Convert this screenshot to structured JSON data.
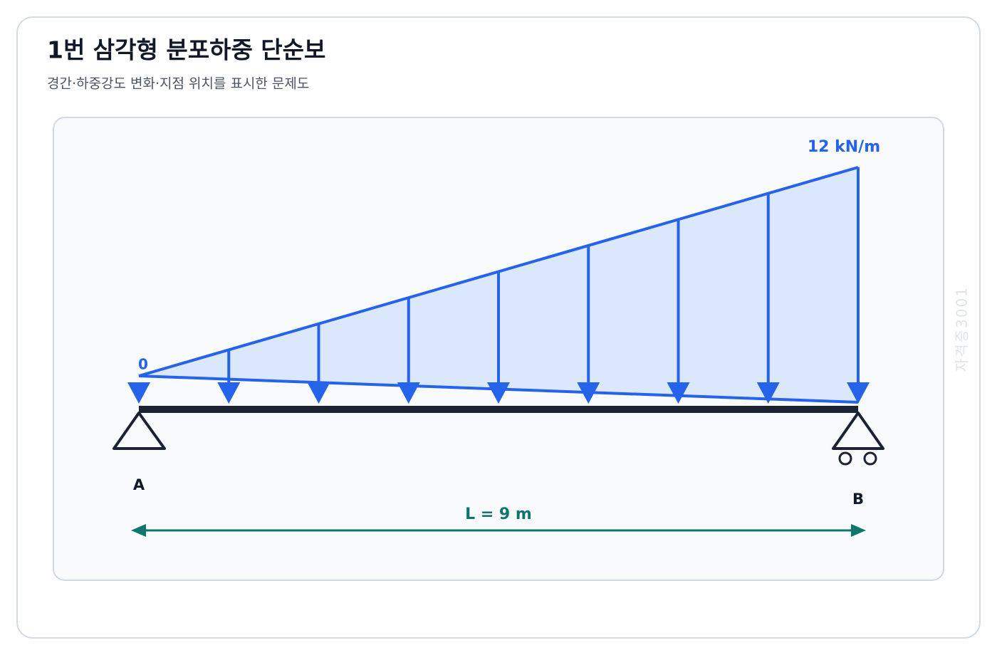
{
  "header": {
    "title": "1번 삼각형 분포하중 단순보",
    "subtitle": "경간·하중강도 변화·지점 위치를 표시한 문제도"
  },
  "diagram": {
    "load_start_label": "0",
    "load_end_label": "12 kN/m",
    "support_left_label": "A",
    "support_right_label": "B",
    "span_label": "L = 9 m",
    "watermark": "자격증3001"
  }
}
